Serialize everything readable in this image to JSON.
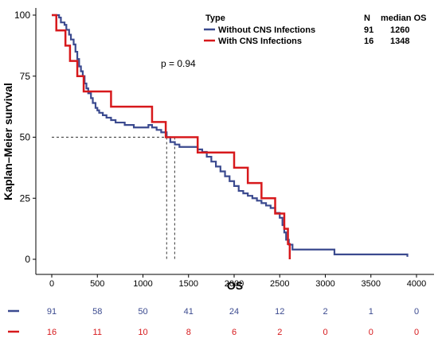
{
  "chart_data": {
    "type": "line",
    "subtype": "kaplan-meier",
    "xlabel": "OS",
    "ylabel": "Kaplan–Meier survival",
    "xlim": [
      0,
      4000
    ],
    "ylim": [
      0,
      100
    ],
    "xticks": [
      0,
      500,
      1000,
      1500,
      2000,
      2500,
      3000,
      3500,
      4000
    ],
    "yticks": [
      0,
      25,
      50,
      75,
      100
    ],
    "grid": false,
    "annotation": "p = 0.94",
    "legend": {
      "position": "top-right",
      "title": "Type",
      "col_n": "N",
      "col_median": "median OS",
      "entries": [
        {
          "name": "Without CNS Infections",
          "n": "91",
          "median": "1260"
        },
        {
          "name": "With CNS Infections",
          "n": "16",
          "median": "1348"
        }
      ]
    },
    "series": [
      {
        "name": "Without CNS Infections",
        "color": "#3b4a8f",
        "n": 91,
        "median_os": 1260,
        "x": [
          0,
          80,
          100,
          140,
          160,
          190,
          210,
          240,
          260,
          280,
          300,
          320,
          340,
          360,
          380,
          400,
          430,
          450,
          480,
          500,
          520,
          560,
          600,
          650,
          700,
          750,
          800,
          850,
          900,
          950,
          1000,
          1060,
          1100,
          1150,
          1200,
          1260,
          1300,
          1350,
          1400,
          1500,
          1600,
          1650,
          1700,
          1750,
          1800,
          1850,
          1900,
          1950,
          2000,
          2050,
          2100,
          2150,
          2200,
          2250,
          2300,
          2350,
          2400,
          2450,
          2500,
          2530,
          2550,
          2570,
          2600,
          2640,
          2800,
          3100,
          3900
        ],
        "y": [
          100,
          99,
          97,
          96,
          94,
          92,
          90,
          88,
          85,
          82,
          79,
          77,
          75,
          72,
          70,
          68,
          66,
          64,
          62,
          61,
          60,
          59,
          58,
          57,
          56,
          56,
          55,
          55,
          54,
          54,
          54,
          55,
          54,
          53,
          52,
          50,
          48,
          47,
          46,
          46,
          45,
          44,
          42,
          40,
          38,
          36,
          34,
          32,
          30,
          28,
          27,
          26,
          25,
          24,
          23,
          22,
          21,
          19,
          17,
          14,
          11,
          8,
          6,
          4,
          4,
          2,
          1
        ]
      },
      {
        "name": "With CNS Infections",
        "color": "#d7191c",
        "n": 16,
        "median_os": 1348,
        "x": [
          0,
          50,
          150,
          200,
          280,
          350,
          380,
          650,
          1100,
          1250,
          1348,
          1600,
          1900,
          2000,
          2150,
          2300,
          2450,
          2500,
          2550,
          2570,
          2590,
          2600,
          2610
        ],
        "y": [
          100,
          93.75,
          87.5,
          81.25,
          75,
          68.75,
          68.75,
          62.5,
          56.25,
          50,
          50,
          43.75,
          43.75,
          37.5,
          31.25,
          25,
          18.75,
          18.75,
          12.5,
          12.5,
          6.25,
          6.25,
          0
        ]
      }
    ],
    "risk_table": {
      "times": [
        0,
        500,
        1000,
        1500,
        2000,
        2500,
        3000,
        3500,
        4000
      ],
      "rows": [
        {
          "name": "Without CNS Infections",
          "color": "#3b4a8f",
          "values": [
            "91",
            "58",
            "50",
            "41",
            "24",
            "12",
            "2",
            "1",
            "0"
          ]
        },
        {
          "name": "With CNS Infections",
          "color": "#d7191c",
          "values": [
            "16",
            "11",
            "10",
            "8",
            "6",
            "2",
            "0",
            "0",
            "0"
          ]
        }
      ]
    }
  }
}
